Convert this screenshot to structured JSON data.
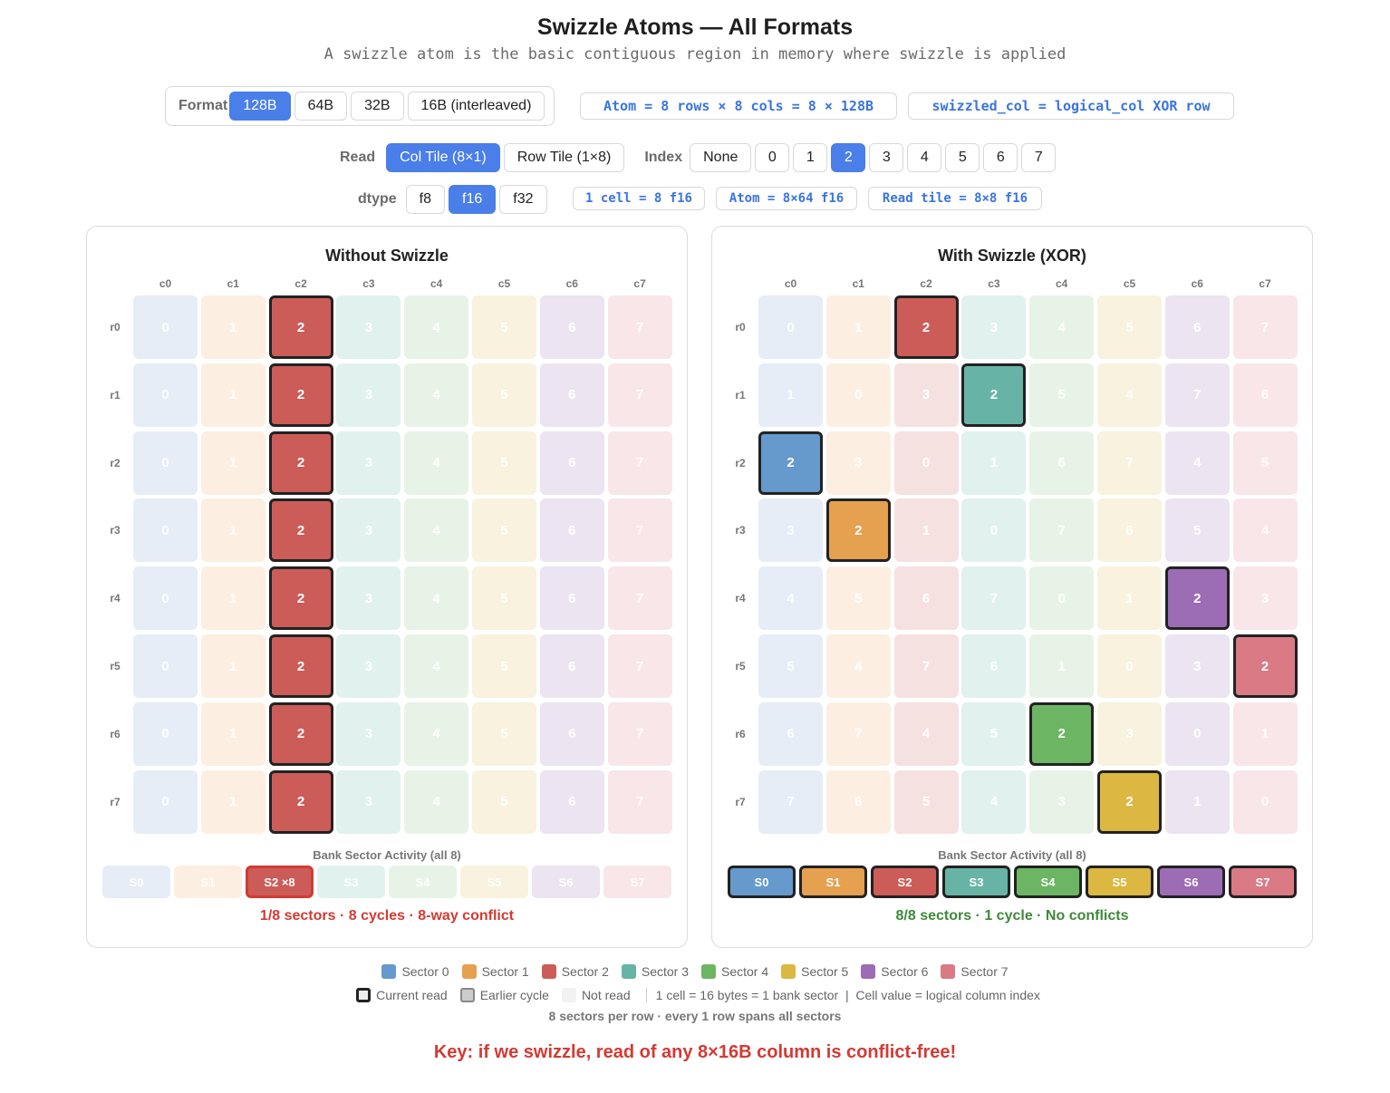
{
  "title": "Swizzle Atoms — All Formats",
  "subtitle": "A swizzle atom is the basic contiguous region in memory where swizzle is applied",
  "format": {
    "label": "Format",
    "options": [
      "128B",
      "64B",
      "32B",
      "16B (interleaved)"
    ],
    "selected": 0
  },
  "info_atom": "Atom = 8 rows × 8 cols = 8 × 128B",
  "info_formula": "swizzled_col = logical_col XOR row",
  "read": {
    "label": "Read",
    "options": [
      "Col Tile (8×1)",
      "Row Tile (1×8)"
    ],
    "selected": 0
  },
  "index": {
    "label": "Index",
    "options": [
      "None",
      "0",
      "1",
      "2",
      "3",
      "4",
      "5",
      "6",
      "7"
    ],
    "selected": 3
  },
  "dtype": {
    "label": "dtype",
    "options": [
      "f8",
      "f16",
      "f32"
    ],
    "selected": 1
  },
  "dtype_info": [
    "1 cell = 8 f16",
    "Atom = 8×64 f16",
    "Read tile = 8×8 f16"
  ],
  "sector_colors": [
    "#6699cc",
    "#e5a050",
    "#cc5c58",
    "#67b4a6",
    "#6cb563",
    "#dcb842",
    "#9c6cb5",
    "#d97a85"
  ],
  "sector_colors_light": [
    "#e6edf7",
    "#fcefe1",
    "#f6e1e1",
    "#e1f1ee",
    "#e7f3e6",
    "#f8f2de",
    "#ece4f1",
    "#f9e6e8"
  ],
  "col_headers": [
    "c0",
    "c1",
    "c2",
    "c3",
    "c4",
    "c5",
    "c6",
    "c7"
  ],
  "row_headers": [
    "r0",
    "r1",
    "r2",
    "r3",
    "r4",
    "r5",
    "r6",
    "r7"
  ],
  "left_panel": {
    "title": "Without Swizzle",
    "bank_title": "Bank Sector Activity (all 8)",
    "sectors": [
      "S0",
      "S1",
      "S2 ×8",
      "S3",
      "S4",
      "S5",
      "S6",
      "S7"
    ],
    "active_sectors": [
      2
    ],
    "status": "1/8 sectors · 8 cycles · 8-way conflict",
    "status_color": "#d33a33"
  },
  "right_panel": {
    "title": "With Swizzle (XOR)",
    "bank_title": "Bank Sector Activity (all 8)",
    "sectors": [
      "S0",
      "S1",
      "S2",
      "S3",
      "S4",
      "S5",
      "S6",
      "S7"
    ],
    "active_sectors": [
      0,
      1,
      2,
      3,
      4,
      5,
      6,
      7
    ],
    "status": "8/8 sectors · 1 cycle · No conflicts",
    "status_color": "#3f8a3a"
  },
  "legend": {
    "sectors": [
      "Sector 0",
      "Sector 1",
      "Sector 2",
      "Sector 3",
      "Sector 4",
      "Sector 5",
      "Sector 6",
      "Sector 7"
    ],
    "current_read": "Current read",
    "earlier_cycle": "Earlier cycle",
    "not_read": "Not read",
    "note": "1 cell = 16 bytes = 1 bank sector  |  Cell value = logical column index",
    "sub_note": "8 sectors per row · every 1 row spans all sectors"
  },
  "key": "Key: if we swizzle, read of any 8×16B column is conflict-free!"
}
